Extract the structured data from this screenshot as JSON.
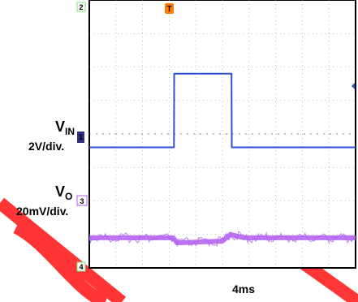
{
  "chart_data": {
    "type": "line",
    "title": "",
    "xlabel": "4ms",
    "x_units": "divisions",
    "xlim": [
      0,
      10
    ],
    "grid": true,
    "channel_markers": [
      "2",
      "3",
      "4"
    ],
    "trigger_marker": "T",
    "series": [
      {
        "name": "VIN",
        "label_main": "V",
        "label_sub": "IN",
        "scale": "2V/div.",
        "color": "#2f4fd6",
        "x": [
          0,
          3.18,
          3.19,
          5.34,
          5.35,
          10
        ],
        "y": [
          3.6,
          3.6,
          5.8,
          5.8,
          3.6,
          3.6
        ]
      },
      {
        "name": "VO",
        "label_main": "V",
        "label_sub": "O",
        "scale": "20mV/div.",
        "color": "#b05cf0",
        "x": [
          0,
          3.15,
          3.3,
          5.0,
          5.3,
          5.8,
          10
        ],
        "y": [
          0.9,
          0.9,
          0.75,
          0.8,
          1.0,
          0.9,
          0.9
        ]
      }
    ]
  },
  "colors": {
    "background": "#ffffff",
    "watermark": "#ff0000",
    "grid": "#909090"
  }
}
